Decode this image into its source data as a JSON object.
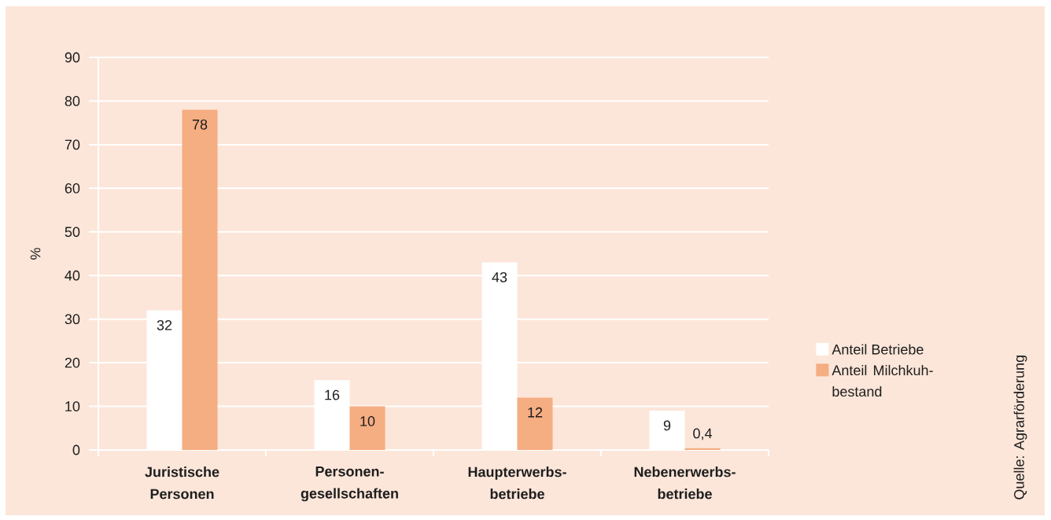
{
  "chart_data": {
    "type": "bar",
    "ylabel": "%",
    "categories": [
      "Juristische Personen",
      "Personen-gesellschaften",
      "Haupterwerbs-betriebe",
      "Nebenerwerbs-betriebe"
    ],
    "series": [
      {
        "name": "Anteil Betriebe",
        "color": "#ffffff",
        "values": [
          32,
          16,
          43,
          9
        ],
        "value_labels": [
          "32",
          "16",
          "43",
          "9"
        ]
      },
      {
        "name": "Anteil Milchkuh-bestand",
        "color": "#f5ad82",
        "values": [
          78,
          10,
          12,
          0.4
        ],
        "value_labels": [
          "78",
          "10",
          "12",
          "0,4"
        ]
      }
    ],
    "ylim": [
      0,
      90
    ],
    "yticks": [
      0,
      10,
      20,
      30,
      40,
      50,
      60,
      70,
      80,
      90
    ],
    "grid": "y",
    "legend": "right",
    "annotations": [
      "Quelle: Agrarförderung"
    ]
  }
}
